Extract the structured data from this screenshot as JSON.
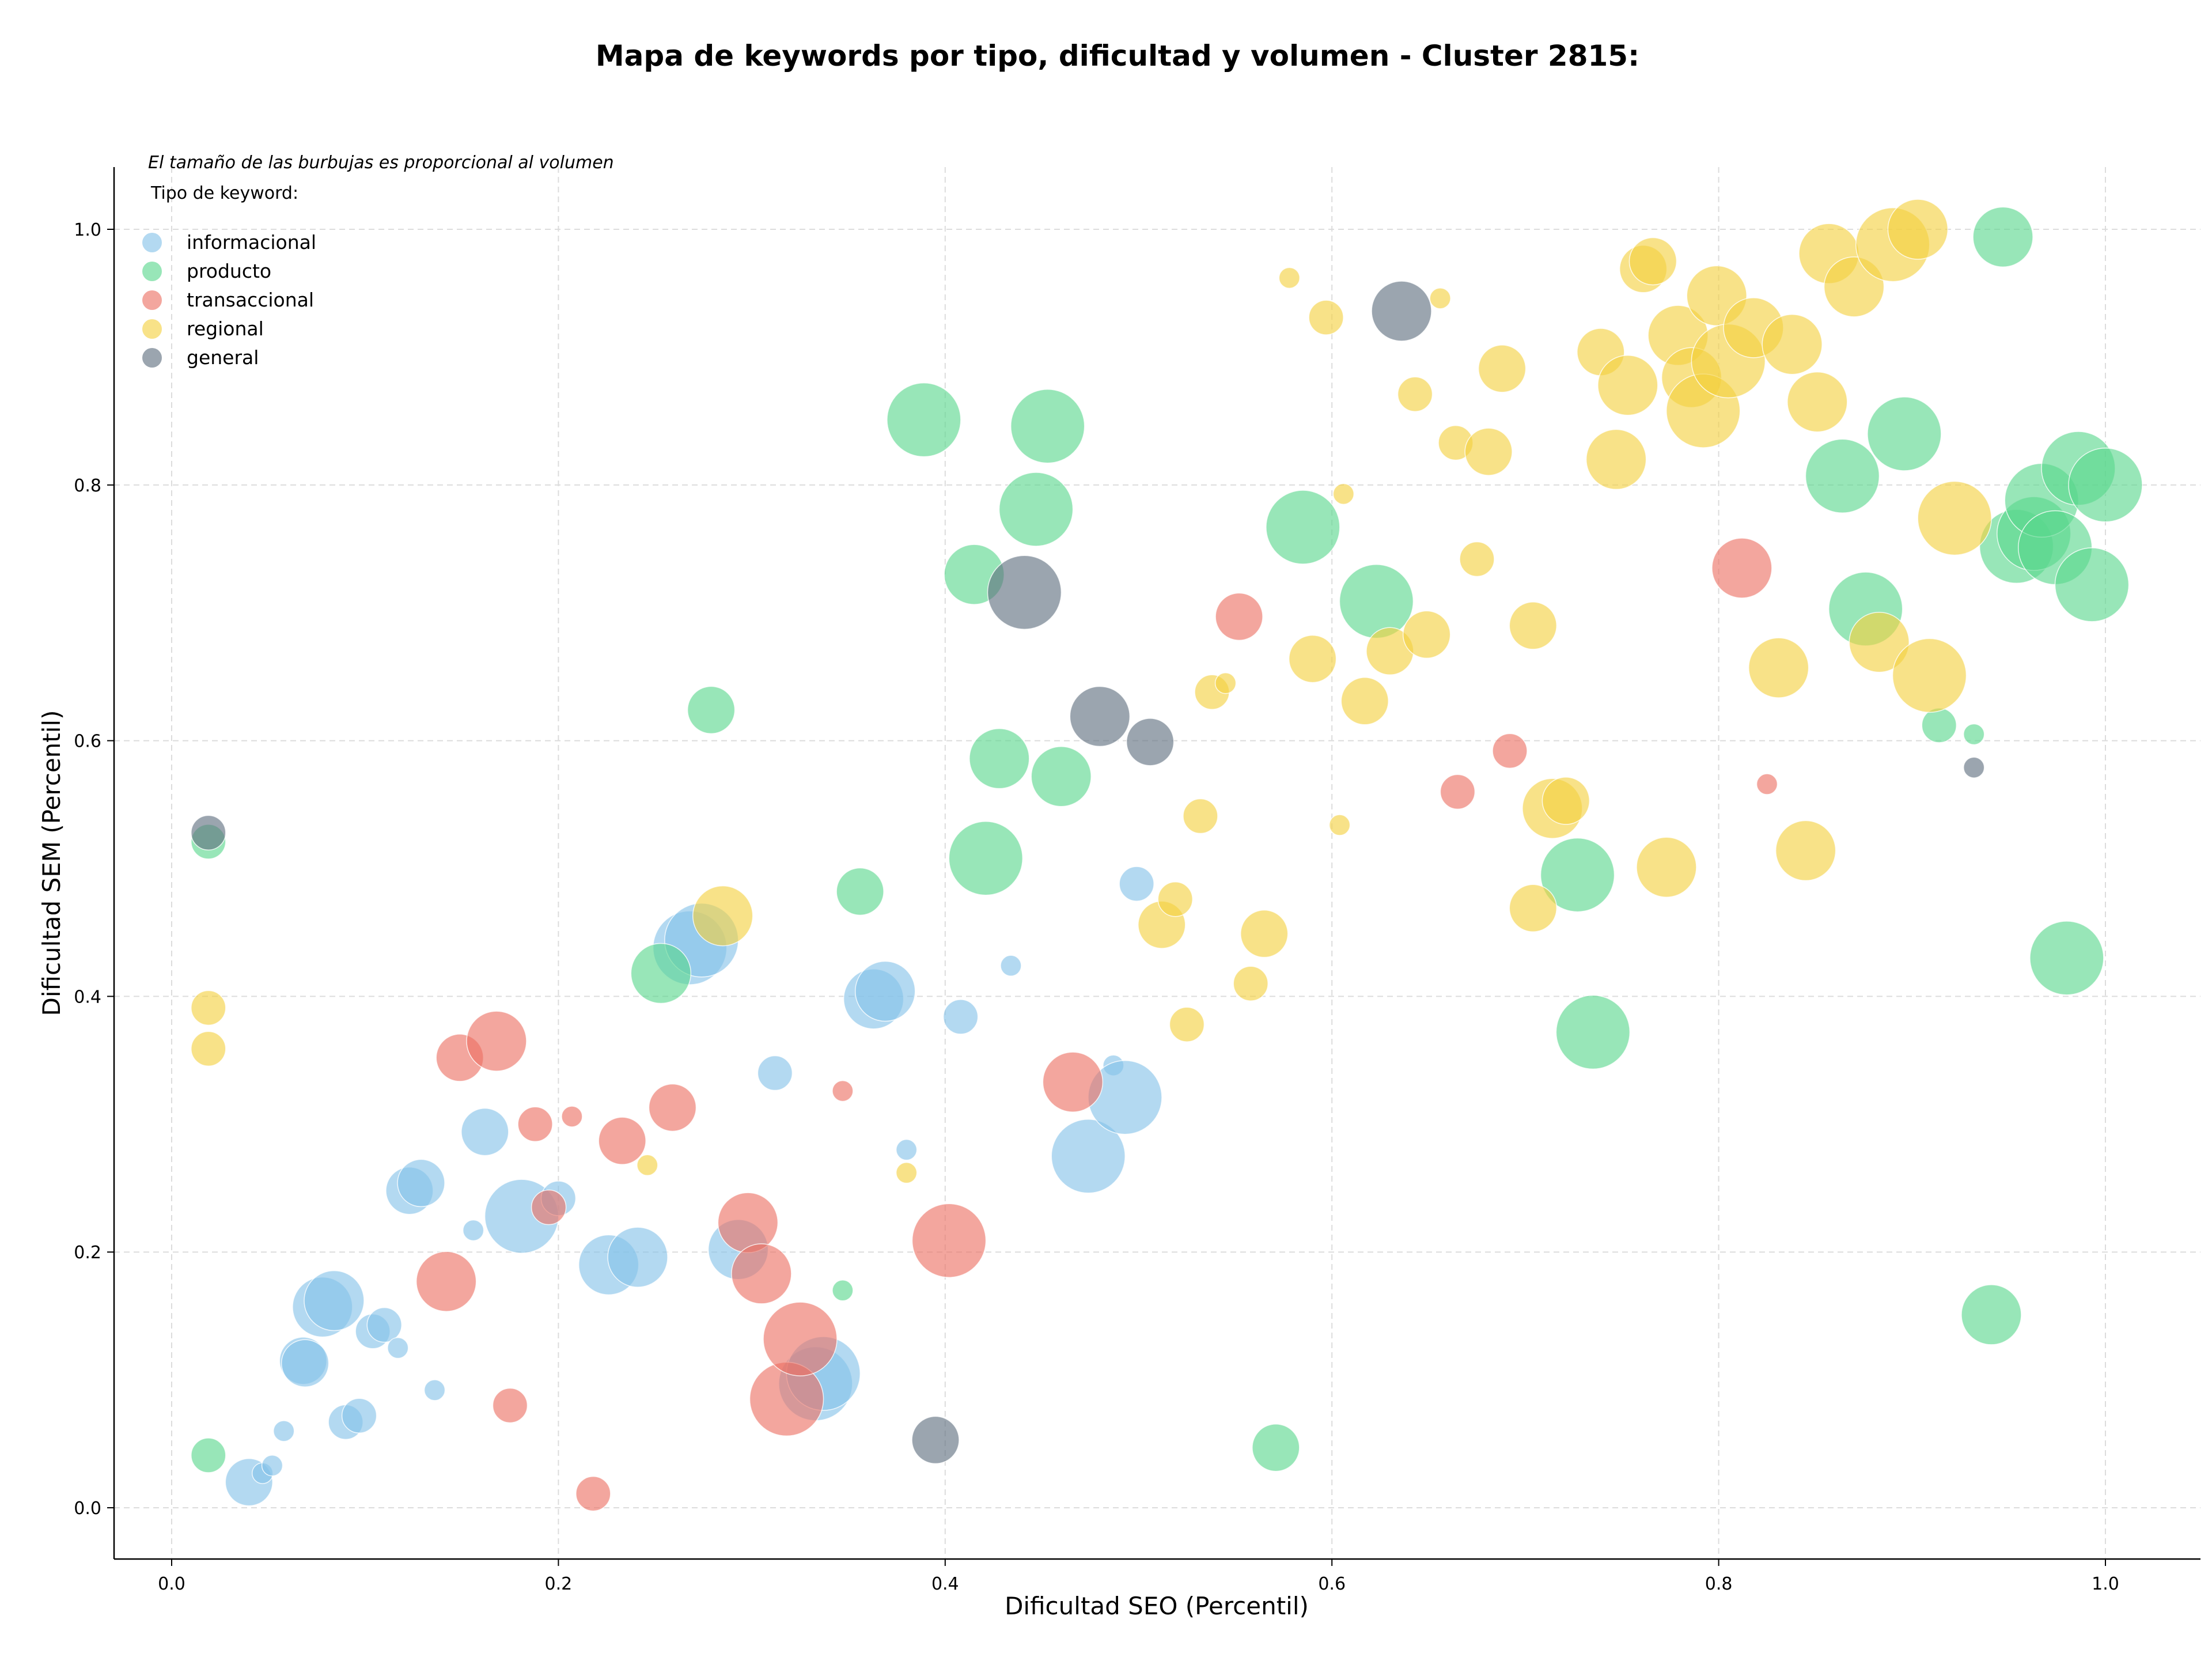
{
  "chart_data": {
    "type": "scatter",
    "title": "Mapa de keywords por tipo, dificultad y volumen - Cluster 2815:",
    "xlabel": "Dificultad SEO (Percentil)",
    "ylabel": "Dificultad SEM (Percentil)",
    "xlim": [
      -0.03,
      1.05
    ],
    "ylim": [
      -0.04,
      1.05
    ],
    "xticks": [
      0.0,
      0.2,
      0.4,
      0.6,
      0.8,
      1.0
    ],
    "yticks": [
      0.0,
      0.2,
      0.4,
      0.6,
      0.8,
      1.0
    ],
    "xtick_labels": [
      "0.0",
      "0.2",
      "0.4",
      "0.6",
      "0.8",
      "1.0"
    ],
    "ytick_labels": [
      "0.0",
      "0.2",
      "0.4",
      "0.6",
      "0.8",
      "1.0"
    ],
    "grid": true,
    "note": "El tamaño de las burbujas es proporcional al volumen",
    "legend_title": "Tipo de keyword:",
    "legend_position": "top-left",
    "series": [
      {
        "name": "informacional",
        "color": "#85c1e9",
        "points": [
          {
            "x": 0.04,
            "y": 0.02,
            "s": 3
          },
          {
            "x": 0.047,
            "y": 0.027,
            "s": 1
          },
          {
            "x": 0.052,
            "y": 0.033,
            "s": 1
          },
          {
            "x": 0.058,
            "y": 0.06,
            "s": 1
          },
          {
            "x": 0.068,
            "y": 0.115,
            "s": 3
          },
          {
            "x": 0.069,
            "y": 0.113,
            "s": 3
          },
          {
            "x": 0.078,
            "y": 0.157,
            "s": 4
          },
          {
            "x": 0.084,
            "y": 0.162,
            "s": 4
          },
          {
            "x": 0.09,
            "y": 0.067,
            "s": 2
          },
          {
            "x": 0.097,
            "y": 0.072,
            "s": 2
          },
          {
            "x": 0.104,
            "y": 0.138,
            "s": 2
          },
          {
            "x": 0.11,
            "y": 0.143,
            "s": 2
          },
          {
            "x": 0.117,
            "y": 0.125,
            "s": 1
          },
          {
            "x": 0.123,
            "y": 0.248,
            "s": 3
          },
          {
            "x": 0.129,
            "y": 0.254,
            "s": 3
          },
          {
            "x": 0.136,
            "y": 0.092,
            "s": 1
          },
          {
            "x": 0.156,
            "y": 0.217,
            "s": 1
          },
          {
            "x": 0.162,
            "y": 0.294,
            "s": 3
          },
          {
            "x": 0.181,
            "y": 0.228,
            "s": 5
          },
          {
            "x": 0.2,
            "y": 0.242,
            "s": 2
          },
          {
            "x": 0.226,
            "y": 0.19,
            "s": 4
          },
          {
            "x": 0.241,
            "y": 0.196,
            "s": 4
          },
          {
            "x": 0.268,
            "y": 0.438,
            "s": 5
          },
          {
            "x": 0.274,
            "y": 0.444,
            "s": 5
          },
          {
            "x": 0.293,
            "y": 0.202,
            "s": 4
          },
          {
            "x": 0.312,
            "y": 0.34,
            "s": 2
          },
          {
            "x": 0.333,
            "y": 0.097,
            "s": 5
          },
          {
            "x": 0.337,
            "y": 0.105,
            "s": 5
          },
          {
            "x": 0.363,
            "y": 0.398,
            "s": 4
          },
          {
            "x": 0.369,
            "y": 0.404,
            "s": 4
          },
          {
            "x": 0.38,
            "y": 0.28,
            "s": 1
          },
          {
            "x": 0.408,
            "y": 0.384,
            "s": 2
          },
          {
            "x": 0.434,
            "y": 0.424,
            "s": 1
          },
          {
            "x": 0.474,
            "y": 0.275,
            "s": 5
          },
          {
            "x": 0.487,
            "y": 0.346,
            "s": 1
          },
          {
            "x": 0.493,
            "y": 0.321,
            "s": 5
          },
          {
            "x": 0.499,
            "y": 0.488,
            "s": 2
          }
        ]
      },
      {
        "name": "producto",
        "color": "#58d68d",
        "points": [
          {
            "x": 0.019,
            "y": 0.041,
            "s": 2
          },
          {
            "x": 0.019,
            "y": 0.521,
            "s": 2
          },
          {
            "x": 0.253,
            "y": 0.418,
            "s": 4
          },
          {
            "x": 0.279,
            "y": 0.624,
            "s": 3
          },
          {
            "x": 0.347,
            "y": 0.17,
            "s": 1
          },
          {
            "x": 0.356,
            "y": 0.482,
            "s": 3
          },
          {
            "x": 0.389,
            "y": 0.851,
            "s": 5
          },
          {
            "x": 0.415,
            "y": 0.73,
            "s": 4
          },
          {
            "x": 0.421,
            "y": 0.508,
            "s": 5
          },
          {
            "x": 0.428,
            "y": 0.586,
            "s": 4
          },
          {
            "x": 0.447,
            "y": 0.781,
            "s": 5
          },
          {
            "x": 0.453,
            "y": 0.846,
            "s": 5
          },
          {
            "x": 0.46,
            "y": 0.572,
            "s": 4
          },
          {
            "x": 0.571,
            "y": 0.047,
            "s": 3
          },
          {
            "x": 0.585,
            "y": 0.767,
            "s": 5
          },
          {
            "x": 0.623,
            "y": 0.709,
            "s": 5
          },
          {
            "x": 0.727,
            "y": 0.495,
            "s": 5
          },
          {
            "x": 0.735,
            "y": 0.372,
            "s": 5
          },
          {
            "x": 0.864,
            "y": 0.807,
            "s": 5
          },
          {
            "x": 0.876,
            "y": 0.703,
            "s": 5
          },
          {
            "x": 0.896,
            "y": 0.84,
            "s": 5
          },
          {
            "x": 0.914,
            "y": 0.612,
            "s": 2
          },
          {
            "x": 0.932,
            "y": 0.605,
            "s": 1
          },
          {
            "x": 0.941,
            "y": 0.151,
            "s": 4
          },
          {
            "x": 0.947,
            "y": 0.994,
            "s": 4
          },
          {
            "x": 0.954,
            "y": 0.752,
            "s": 5
          },
          {
            "x": 0.963,
            "y": 0.762,
            "s": 5
          },
          {
            "x": 0.967,
            "y": 0.788,
            "s": 5
          },
          {
            "x": 0.974,
            "y": 0.751,
            "s": 5
          },
          {
            "x": 0.98,
            "y": 0.43,
            "s": 5
          },
          {
            "x": 0.986,
            "y": 0.813,
            "s": 5
          },
          {
            "x": 0.993,
            "y": 0.722,
            "s": 5
          },
          {
            "x": 1.0,
            "y": 0.8,
            "s": 5
          }
        ]
      },
      {
        "name": "transaccional",
        "color": "#ec7063",
        "points": [
          {
            "x": 0.142,
            "y": 0.177,
            "s": 4
          },
          {
            "x": 0.149,
            "y": 0.352,
            "s": 3
          },
          {
            "x": 0.168,
            "y": 0.365,
            "s": 4
          },
          {
            "x": 0.175,
            "y": 0.08,
            "s": 2
          },
          {
            "x": 0.188,
            "y": 0.3,
            "s": 2
          },
          {
            "x": 0.195,
            "y": 0.235,
            "s": 2
          },
          {
            "x": 0.207,
            "y": 0.306,
            "s": 1
          },
          {
            "x": 0.218,
            "y": 0.011,
            "s": 2
          },
          {
            "x": 0.233,
            "y": 0.287,
            "s": 3
          },
          {
            "x": 0.259,
            "y": 0.313,
            "s": 3
          },
          {
            "x": 0.298,
            "y": 0.223,
            "s": 4
          },
          {
            "x": 0.305,
            "y": 0.183,
            "s": 4
          },
          {
            "x": 0.318,
            "y": 0.085,
            "s": 5
          },
          {
            "x": 0.325,
            "y": 0.132,
            "s": 5
          },
          {
            "x": 0.347,
            "y": 0.326,
            "s": 1
          },
          {
            "x": 0.402,
            "y": 0.209,
            "s": 5
          },
          {
            "x": 0.466,
            "y": 0.333,
            "s": 4
          },
          {
            "x": 0.552,
            "y": 0.697,
            "s": 3
          },
          {
            "x": 0.665,
            "y": 0.56,
            "s": 2
          },
          {
            "x": 0.692,
            "y": 0.592,
            "s": 2
          },
          {
            "x": 0.812,
            "y": 0.735,
            "s": 4
          },
          {
            "x": 0.825,
            "y": 0.566,
            "s": 1
          }
        ]
      },
      {
        "name": "regional",
        "color": "#f4d03f",
        "points": [
          {
            "x": 0.019,
            "y": 0.359,
            "s": 2
          },
          {
            "x": 0.019,
            "y": 0.391,
            "s": 2
          },
          {
            "x": 0.246,
            "y": 0.268,
            "s": 1
          },
          {
            "x": 0.285,
            "y": 0.463,
            "s": 4
          },
          {
            "x": 0.38,
            "y": 0.262,
            "s": 1
          },
          {
            "x": 0.512,
            "y": 0.456,
            "s": 3
          },
          {
            "x": 0.519,
            "y": 0.476,
            "s": 2
          },
          {
            "x": 0.525,
            "y": 0.378,
            "s": 2
          },
          {
            "x": 0.532,
            "y": 0.541,
            "s": 2
          },
          {
            "x": 0.538,
            "y": 0.638,
            "s": 2
          },
          {
            "x": 0.545,
            "y": 0.645,
            "s": 1
          },
          {
            "x": 0.558,
            "y": 0.41,
            "s": 2
          },
          {
            "x": 0.565,
            "y": 0.449,
            "s": 3
          },
          {
            "x": 0.578,
            "y": 0.962,
            "s": 1
          },
          {
            "x": 0.59,
            "y": 0.664,
            "s": 3
          },
          {
            "x": 0.597,
            "y": 0.931,
            "s": 2
          },
          {
            "x": 0.604,
            "y": 0.534,
            "s": 1
          },
          {
            "x": 0.606,
            "y": 0.793,
            "s": 1
          },
          {
            "x": 0.617,
            "y": 0.631,
            "s": 3
          },
          {
            "x": 0.63,
            "y": 0.67,
            "s": 3
          },
          {
            "x": 0.643,
            "y": 0.871,
            "s": 2
          },
          {
            "x": 0.649,
            "y": 0.683,
            "s": 3
          },
          {
            "x": 0.656,
            "y": 0.946,
            "s": 1
          },
          {
            "x": 0.664,
            "y": 0.833,
            "s": 2
          },
          {
            "x": 0.675,
            "y": 0.742,
            "s": 2
          },
          {
            "x": 0.681,
            "y": 0.826,
            "s": 3
          },
          {
            "x": 0.688,
            "y": 0.891,
            "s": 3
          },
          {
            "x": 0.704,
            "y": 0.469,
            "s": 3
          },
          {
            "x": 0.704,
            "y": 0.69,
            "s": 3
          },
          {
            "x": 0.714,
            "y": 0.547,
            "s": 4
          },
          {
            "x": 0.721,
            "y": 0.553,
            "s": 3
          },
          {
            "x": 0.739,
            "y": 0.904,
            "s": 3
          },
          {
            "x": 0.747,
            "y": 0.82,
            "s": 4
          },
          {
            "x": 0.753,
            "y": 0.878,
            "s": 4
          },
          {
            "x": 0.761,
            "y": 0.969,
            "s": 3
          },
          {
            "x": 0.766,
            "y": 0.975,
            "s": 3
          },
          {
            "x": 0.773,
            "y": 0.501,
            "s": 4
          },
          {
            "x": 0.779,
            "y": 0.917,
            "s": 4
          },
          {
            "x": 0.786,
            "y": 0.884,
            "s": 4
          },
          {
            "x": 0.792,
            "y": 0.858,
            "s": 5
          },
          {
            "x": 0.799,
            "y": 0.948,
            "s": 4
          },
          {
            "x": 0.805,
            "y": 0.897,
            "s": 5
          },
          {
            "x": 0.818,
            "y": 0.923,
            "s": 4
          },
          {
            "x": 0.831,
            "y": 0.657,
            "s": 4
          },
          {
            "x": 0.838,
            "y": 0.91,
            "s": 4
          },
          {
            "x": 0.845,
            "y": 0.514,
            "s": 4
          },
          {
            "x": 0.851,
            "y": 0.865,
            "s": 4
          },
          {
            "x": 0.857,
            "y": 0.981,
            "s": 4
          },
          {
            "x": 0.87,
            "y": 0.955,
            "s": 4
          },
          {
            "x": 0.883,
            "y": 0.677,
            "s": 4
          },
          {
            "x": 0.89,
            "y": 0.988,
            "s": 5
          },
          {
            "x": 0.903,
            "y": 1.0,
            "s": 4
          },
          {
            "x": 0.909,
            "y": 0.651,
            "s": 5
          },
          {
            "x": 0.922,
            "y": 0.774,
            "s": 5
          }
        ]
      },
      {
        "name": "general",
        "color": "#5d6d7e",
        "points": [
          {
            "x": 0.019,
            "y": 0.528,
            "s": 2
          },
          {
            "x": 0.395,
            "y": 0.053,
            "s": 3
          },
          {
            "x": 0.441,
            "y": 0.716,
            "s": 5
          },
          {
            "x": 0.48,
            "y": 0.619,
            "s": 4
          },
          {
            "x": 0.506,
            "y": 0.599,
            "s": 3
          },
          {
            "x": 0.636,
            "y": 0.936,
            "s": 4
          },
          {
            "x": 0.932,
            "y": 0.579,
            "s": 1
          }
        ]
      }
    ]
  }
}
